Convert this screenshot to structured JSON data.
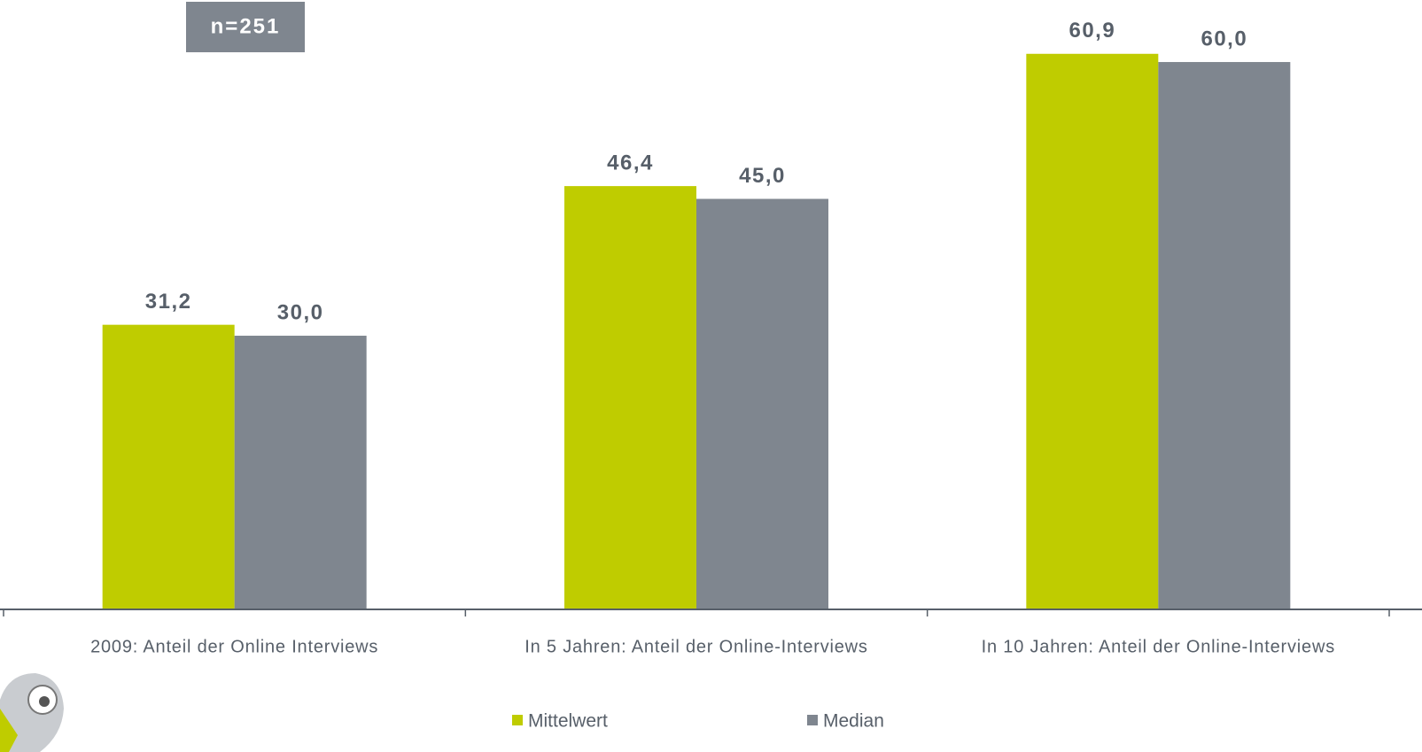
{
  "chart_data": {
    "type": "bar",
    "annotation": "n=251",
    "categories": [
      "2009: Anteil der Online Interviews",
      "In 5 Jahren: Anteil der Online-Interviews",
      "In 10 Jahren: Anteil der Online-Interviews"
    ],
    "series": [
      {
        "name": "Mittelwert",
        "color": "#bfcc00",
        "values": [
          31.2,
          46.4,
          60.9
        ],
        "value_labels": [
          "31,2",
          "46,4",
          "60,9"
        ]
      },
      {
        "name": "Median",
        "color": "#7f868f",
        "values": [
          30.0,
          45.0,
          60.0
        ],
        "value_labels": [
          "30,0",
          "45,0",
          "60,0"
        ]
      }
    ],
    "ylim": [
      0,
      66.8
    ],
    "legend": "bottom"
  }
}
